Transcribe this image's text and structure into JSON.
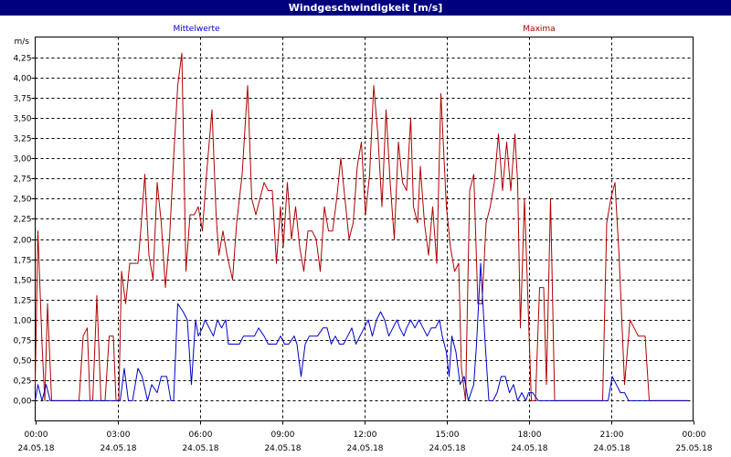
{
  "window": {
    "title": "Windgeschwindigkeit [m/s]"
  },
  "colors": {
    "titlebar": "#00007f",
    "mittelwerte": "#0000cc",
    "maxima": "#b00000",
    "grid": "#000000"
  },
  "chart_data": {
    "type": "line",
    "title": "Windgeschwindigkeit [m/s]",
    "ylabel": "m/s",
    "ylim": [
      -0.25,
      4.5
    ],
    "xlim_hours": [
      0,
      24
    ],
    "grid": true,
    "yticks": [
      "0,00",
      "0,25",
      "0,50",
      "0,75",
      "1,00",
      "1,25",
      "1,50",
      "1,75",
      "2,00",
      "2,25",
      "2,50",
      "2,75",
      "3,00",
      "3,25",
      "3,50",
      "3,75",
      "4,00",
      "4,25"
    ],
    "xticks": [
      {
        "time": "00:00",
        "date": "24.05.18"
      },
      {
        "time": "03:00",
        "date": "24.05.18"
      },
      {
        "time": "06:00",
        "date": "24.05.18"
      },
      {
        "time": "09:00",
        "date": "24.05.18"
      },
      {
        "time": "12:00",
        "date": "24.05.18"
      },
      {
        "time": "15:00",
        "date": "24.05.18"
      },
      {
        "time": "18:00",
        "date": "24.05.18"
      },
      {
        "time": "21:00",
        "date": "24.05.18"
      },
      {
        "time": "00:00",
        "date": "25.05.18"
      }
    ],
    "series": [
      {
        "name": "Mittelwerte",
        "color": "#0000cc",
        "points": [
          [
            0.0,
            0.0
          ],
          [
            0.1,
            0.2
          ],
          [
            0.25,
            0.0
          ],
          [
            0.4,
            0.2
          ],
          [
            0.55,
            0.0
          ],
          [
            3.1,
            0.0
          ],
          [
            3.25,
            0.4
          ],
          [
            3.4,
            0.0
          ],
          [
            3.55,
            0.0
          ],
          [
            3.75,
            0.4
          ],
          [
            3.9,
            0.3
          ],
          [
            4.1,
            0.0
          ],
          [
            4.25,
            0.2
          ],
          [
            4.45,
            0.1
          ],
          [
            4.6,
            0.3
          ],
          [
            4.8,
            0.3
          ],
          [
            4.95,
            0.0
          ],
          [
            5.05,
            0.0
          ],
          [
            5.2,
            1.2
          ],
          [
            5.4,
            1.1
          ],
          [
            5.55,
            1.0
          ],
          [
            5.7,
            0.2
          ],
          [
            5.85,
            1.0
          ],
          [
            5.95,
            0.8
          ],
          [
            6.1,
            0.9
          ],
          [
            6.2,
            1.0
          ],
          [
            6.35,
            0.9
          ],
          [
            6.5,
            0.8
          ],
          [
            6.65,
            1.0
          ],
          [
            6.8,
            0.9
          ],
          [
            6.95,
            1.0
          ],
          [
            7.05,
            0.7
          ],
          [
            7.25,
            0.7
          ],
          [
            7.45,
            0.7
          ],
          [
            7.6,
            0.8
          ],
          [
            7.8,
            0.8
          ],
          [
            8.0,
            0.8
          ],
          [
            8.15,
            0.9
          ],
          [
            8.35,
            0.8
          ],
          [
            8.5,
            0.7
          ],
          [
            8.65,
            0.7
          ],
          [
            8.8,
            0.7
          ],
          [
            8.95,
            0.8
          ],
          [
            9.1,
            0.7
          ],
          [
            9.25,
            0.7
          ],
          [
            9.45,
            0.8
          ],
          [
            9.55,
            0.7
          ],
          [
            9.7,
            0.3
          ],
          [
            9.85,
            0.7
          ],
          [
            10.0,
            0.8
          ],
          [
            10.15,
            0.8
          ],
          [
            10.3,
            0.8
          ],
          [
            10.5,
            0.9
          ],
          [
            10.65,
            0.9
          ],
          [
            10.8,
            0.7
          ],
          [
            10.95,
            0.8
          ],
          [
            11.1,
            0.7
          ],
          [
            11.25,
            0.7
          ],
          [
            11.4,
            0.8
          ],
          [
            11.55,
            0.9
          ],
          [
            11.7,
            0.7
          ],
          [
            11.85,
            0.8
          ],
          [
            12.0,
            0.9
          ],
          [
            12.15,
            1.0
          ],
          [
            12.3,
            0.8
          ],
          [
            12.45,
            1.0
          ],
          [
            12.6,
            1.1
          ],
          [
            12.75,
            1.0
          ],
          [
            12.9,
            0.8
          ],
          [
            13.05,
            0.9
          ],
          [
            13.2,
            1.0
          ],
          [
            13.3,
            0.9
          ],
          [
            13.45,
            0.8
          ],
          [
            13.55,
            0.9
          ],
          [
            13.7,
            1.0
          ],
          [
            13.85,
            0.9
          ],
          [
            14.0,
            1.0
          ],
          [
            14.15,
            0.9
          ],
          [
            14.3,
            0.8
          ],
          [
            14.45,
            0.9
          ],
          [
            14.6,
            0.9
          ],
          [
            14.75,
            1.0
          ],
          [
            14.85,
            0.8
          ],
          [
            15.0,
            0.6
          ],
          [
            15.1,
            0.3
          ],
          [
            15.2,
            0.8
          ],
          [
            15.35,
            0.6
          ],
          [
            15.5,
            0.2
          ],
          [
            15.65,
            0.3
          ],
          [
            15.8,
            0.0
          ],
          [
            16.0,
            0.2
          ],
          [
            16.1,
            0.7
          ],
          [
            16.25,
            1.7
          ],
          [
            16.4,
            0.8
          ],
          [
            16.55,
            0.0
          ],
          [
            16.7,
            0.0
          ],
          [
            16.85,
            0.1
          ],
          [
            17.0,
            0.3
          ],
          [
            17.15,
            0.3
          ],
          [
            17.3,
            0.1
          ],
          [
            17.45,
            0.2
          ],
          [
            17.6,
            0.0
          ],
          [
            17.75,
            0.1
          ],
          [
            17.9,
            0.0
          ],
          [
            18.0,
            0.1
          ],
          [
            18.15,
            0.1
          ],
          [
            18.35,
            0.0
          ],
          [
            20.9,
            0.0
          ],
          [
            21.05,
            0.3
          ],
          [
            21.2,
            0.2
          ],
          [
            21.35,
            0.1
          ],
          [
            21.5,
            0.1
          ],
          [
            21.65,
            0.0
          ],
          [
            23.8,
            0.0
          ]
        ]
      },
      {
        "name": "Maxima",
        "color": "#b00000",
        "points": [
          [
            0.0,
            0.2
          ],
          [
            0.1,
            2.1
          ],
          [
            0.25,
            0.7
          ],
          [
            0.35,
            0.0
          ],
          [
            0.45,
            1.2
          ],
          [
            0.6,
            0.0
          ],
          [
            1.6,
            0.0
          ],
          [
            1.75,
            0.8
          ],
          [
            1.9,
            0.9
          ],
          [
            2.0,
            0.0
          ],
          [
            2.1,
            0.0
          ],
          [
            2.25,
            1.3
          ],
          [
            2.4,
            0.0
          ],
          [
            2.55,
            0.0
          ],
          [
            2.7,
            0.8
          ],
          [
            2.85,
            0.8
          ],
          [
            2.95,
            0.0
          ],
          [
            3.05,
            0.0
          ],
          [
            3.15,
            1.6
          ],
          [
            3.3,
            1.2
          ],
          [
            3.45,
            1.7
          ],
          [
            3.6,
            1.7
          ],
          [
            3.75,
            1.7
          ],
          [
            3.85,
            2.1
          ],
          [
            4.0,
            2.8
          ],
          [
            4.15,
            1.8
          ],
          [
            4.3,
            1.5
          ],
          [
            4.45,
            2.7
          ],
          [
            4.6,
            2.2
          ],
          [
            4.75,
            1.4
          ],
          [
            4.9,
            2.0
          ],
          [
            5.05,
            3.0
          ],
          [
            5.2,
            3.9
          ],
          [
            5.35,
            4.3
          ],
          [
            5.5,
            1.6
          ],
          [
            5.65,
            2.3
          ],
          [
            5.8,
            2.3
          ],
          [
            5.95,
            2.4
          ],
          [
            6.1,
            2.1
          ],
          [
            6.25,
            2.8
          ],
          [
            6.45,
            3.6
          ],
          [
            6.6,
            2.3
          ],
          [
            6.7,
            1.8
          ],
          [
            6.85,
            2.1
          ],
          [
            7.0,
            1.8
          ],
          [
            7.2,
            1.5
          ],
          [
            7.35,
            2.2
          ],
          [
            7.55,
            2.8
          ],
          [
            7.75,
            3.9
          ],
          [
            7.9,
            2.5
          ],
          [
            8.05,
            2.3
          ],
          [
            8.2,
            2.5
          ],
          [
            8.35,
            2.7
          ],
          [
            8.5,
            2.6
          ],
          [
            8.65,
            2.6
          ],
          [
            8.8,
            1.7
          ],
          [
            8.95,
            2.4
          ],
          [
            9.05,
            1.9
          ],
          [
            9.2,
            2.7
          ],
          [
            9.35,
            2.0
          ],
          [
            9.5,
            2.4
          ],
          [
            9.65,
            1.9
          ],
          [
            9.8,
            1.6
          ],
          [
            9.95,
            2.1
          ],
          [
            10.1,
            2.1
          ],
          [
            10.25,
            2.0
          ],
          [
            10.4,
            1.6
          ],
          [
            10.55,
            2.4
          ],
          [
            10.7,
            2.1
          ],
          [
            10.85,
            2.1
          ],
          [
            11.0,
            2.5
          ],
          [
            11.15,
            3.0
          ],
          [
            11.3,
            2.5
          ],
          [
            11.45,
            2.0
          ],
          [
            11.6,
            2.2
          ],
          [
            11.75,
            2.9
          ],
          [
            11.9,
            3.2
          ],
          [
            12.05,
            2.3
          ],
          [
            12.2,
            2.8
          ],
          [
            12.35,
            3.9
          ],
          [
            12.5,
            3.3
          ],
          [
            12.65,
            2.4
          ],
          [
            12.8,
            3.6
          ],
          [
            12.95,
            2.7
          ],
          [
            13.1,
            2.0
          ],
          [
            13.25,
            3.2
          ],
          [
            13.4,
            2.7
          ],
          [
            13.55,
            2.6
          ],
          [
            13.7,
            3.5
          ],
          [
            13.8,
            2.4
          ],
          [
            13.95,
            2.2
          ],
          [
            14.05,
            2.9
          ],
          [
            14.2,
            2.2
          ],
          [
            14.35,
            1.8
          ],
          [
            14.5,
            2.4
          ],
          [
            14.65,
            1.7
          ],
          [
            14.8,
            3.8
          ],
          [
            15.0,
            2.4
          ],
          [
            15.15,
            1.9
          ],
          [
            15.3,
            1.6
          ],
          [
            15.45,
            1.7
          ],
          [
            15.55,
            0.4
          ],
          [
            15.7,
            0.0
          ],
          [
            15.85,
            2.6
          ],
          [
            16.0,
            2.8
          ],
          [
            16.15,
            1.2
          ],
          [
            16.3,
            1.2
          ],
          [
            16.45,
            2.2
          ],
          [
            16.6,
            2.4
          ],
          [
            16.75,
            2.7
          ],
          [
            16.9,
            3.3
          ],
          [
            17.05,
            2.6
          ],
          [
            17.2,
            3.2
          ],
          [
            17.35,
            2.6
          ],
          [
            17.5,
            3.3
          ],
          [
            17.6,
            2.7
          ],
          [
            17.7,
            0.9
          ],
          [
            17.85,
            2.5
          ],
          [
            17.95,
            1.5
          ],
          [
            18.1,
            0.0
          ],
          [
            18.25,
            0.0
          ],
          [
            18.4,
            1.4
          ],
          [
            18.55,
            1.4
          ],
          [
            18.65,
            0.2
          ],
          [
            18.8,
            2.5
          ],
          [
            18.95,
            0.0
          ],
          [
            20.7,
            0.0
          ],
          [
            20.85,
            2.2
          ],
          [
            21.0,
            2.5
          ],
          [
            21.15,
            2.7
          ],
          [
            21.3,
            1.8
          ],
          [
            21.5,
            0.2
          ],
          [
            21.7,
            1.0
          ],
          [
            21.85,
            0.9
          ],
          [
            22.0,
            0.8
          ],
          [
            22.25,
            0.8
          ],
          [
            22.4,
            0.0
          ],
          [
            23.8,
            0.0
          ]
        ]
      }
    ]
  }
}
